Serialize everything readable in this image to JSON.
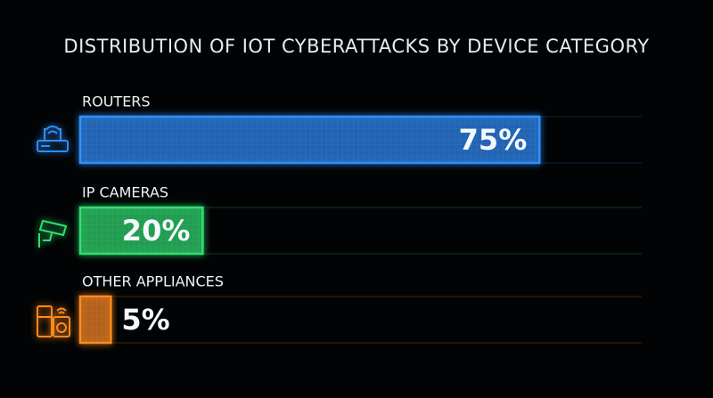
{
  "chart_data": {
    "type": "bar",
    "orientation": "horizontal",
    "title": "DISTRIBUTION OF IOT CYBERATTACKS BY DEVICE CATEGORY",
    "categories": [
      "ROUTERS",
      "IP CAMERAS",
      "OTHER APPLIANCES"
    ],
    "values": [
      75,
      20,
      5
    ],
    "value_labels": [
      "75%",
      "20%",
      "5%"
    ],
    "colors": [
      "#2f8fff",
      "#2fe070",
      "#ff8a1f"
    ],
    "xlim": [
      0,
      100
    ]
  }
}
